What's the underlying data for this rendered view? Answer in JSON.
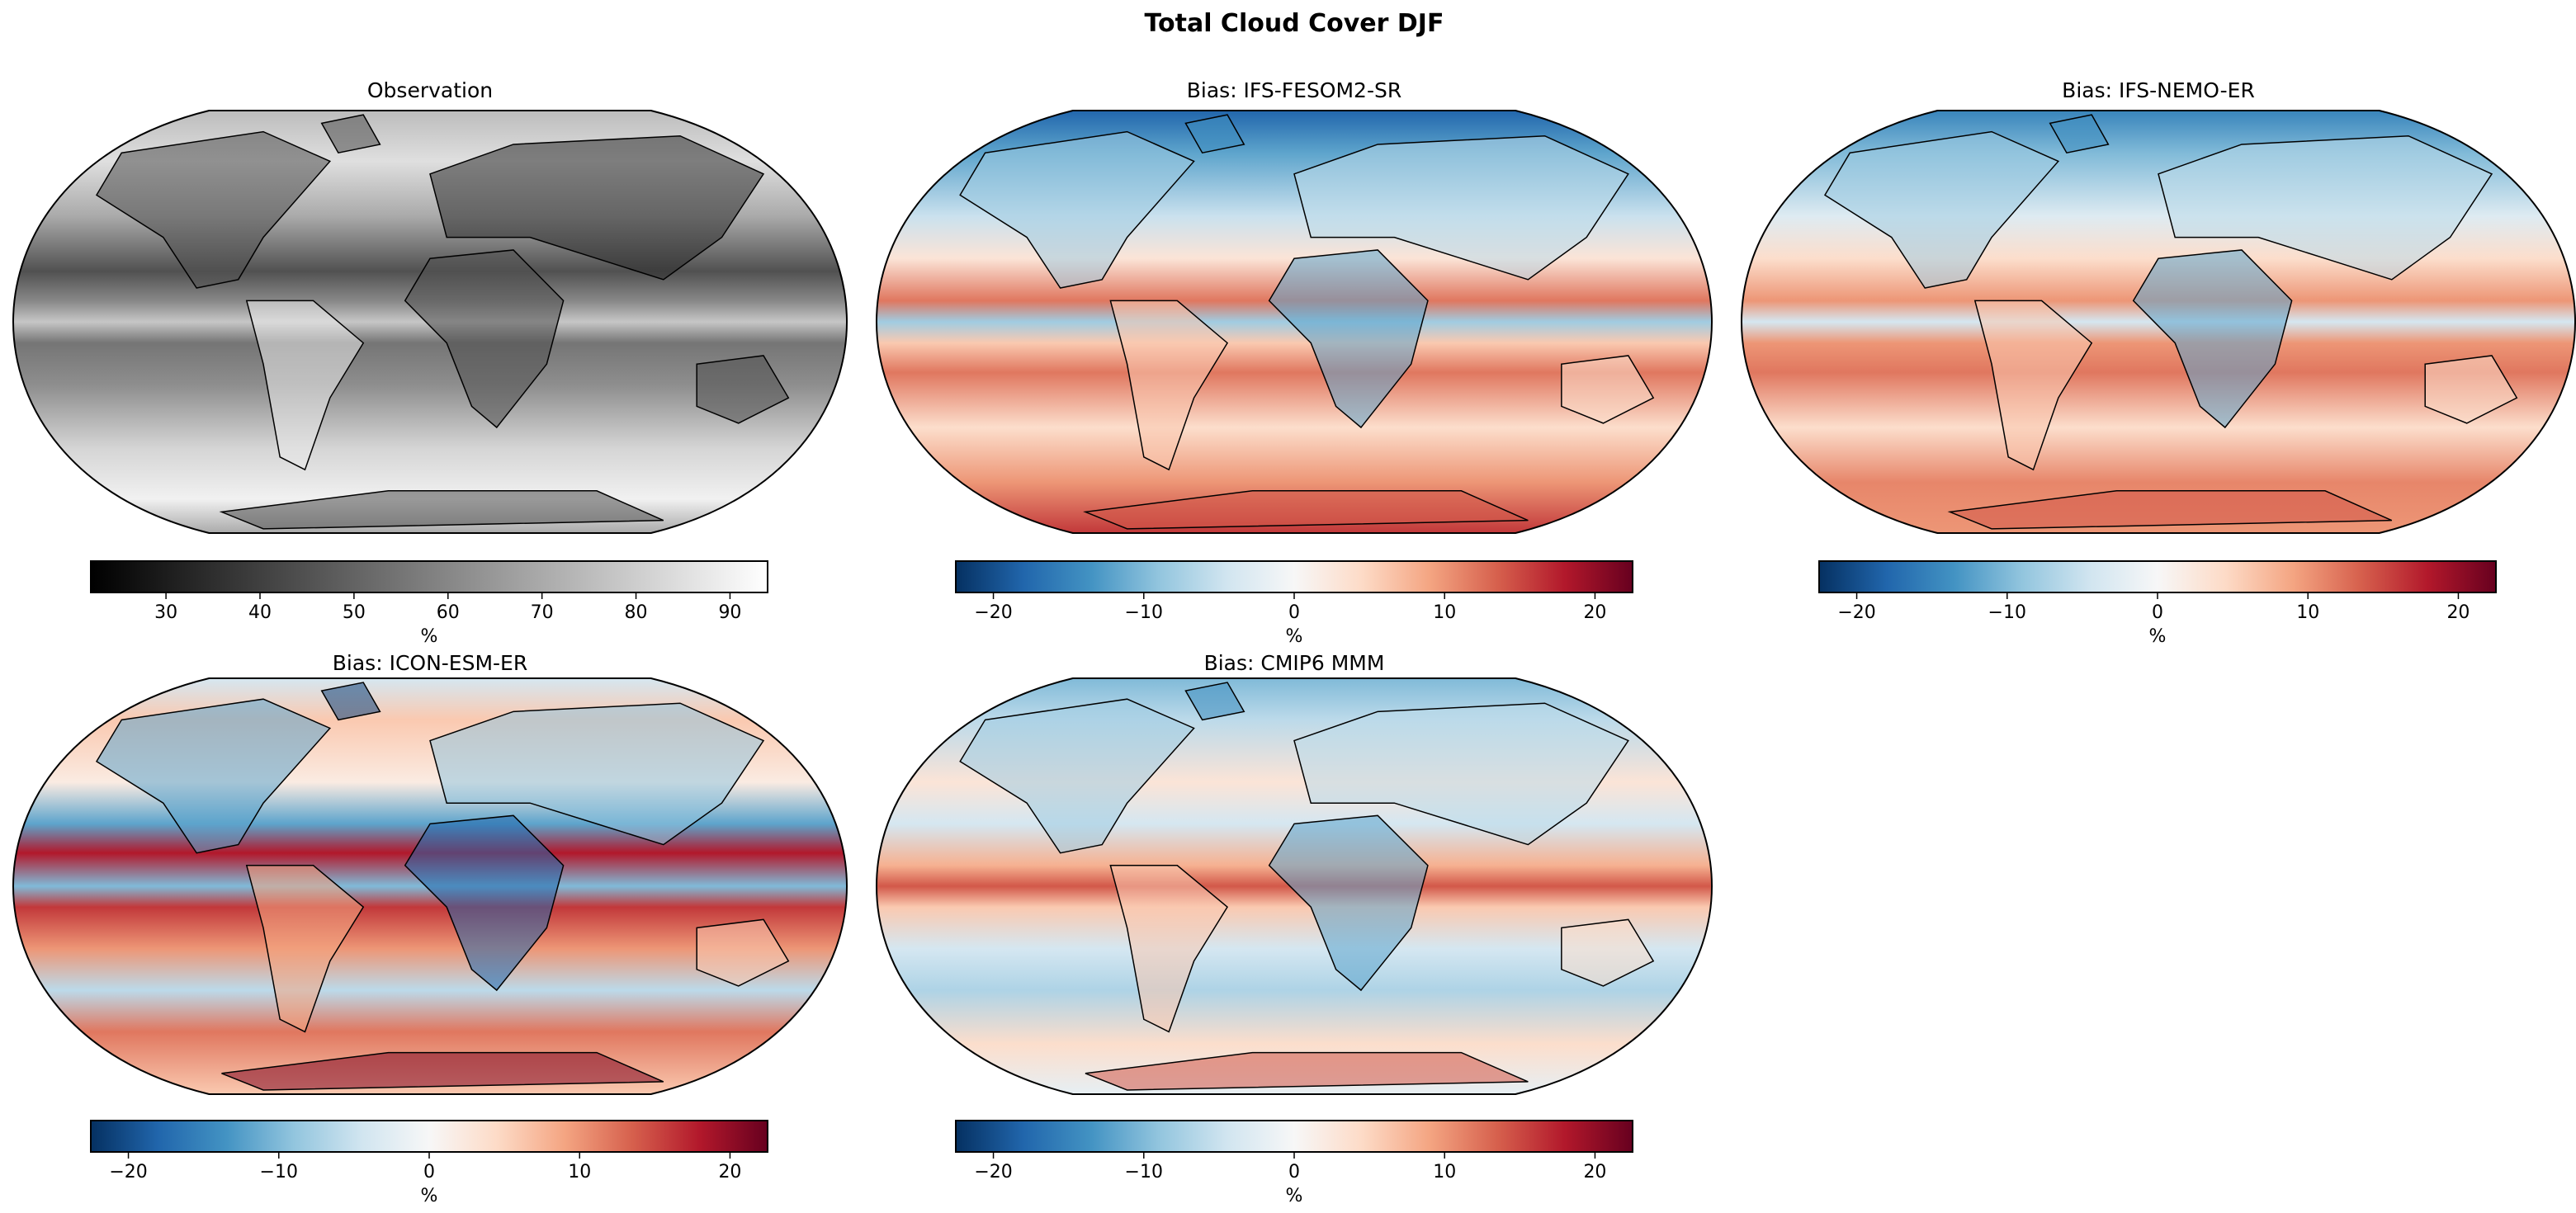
{
  "figure": {
    "title": "Total Cloud Cover DJF"
  },
  "chart_data": [
    {
      "type": "heatmap",
      "title": "Observation",
      "projection": "Robinson",
      "colormap": "grey",
      "clabel": "%",
      "vmin": 22,
      "vmax": 94,
      "ticks": [
        30,
        40,
        50,
        60,
        70,
        80,
        90
      ],
      "tick_labels": [
        "30",
        "40",
        "50",
        "60",
        "70",
        "80",
        "90"
      ],
      "colors": {
        "low": "#000000",
        "high": "#ffffff"
      }
    },
    {
      "type": "heatmap",
      "title": "Bias: IFS-FESOM2-SR",
      "projection": "Robinson",
      "colormap": "RdBu_r",
      "clabel": "%",
      "vmin": -22.5,
      "vmax": 22.5,
      "ticks": [
        -20,
        -10,
        0,
        10,
        20
      ],
      "tick_labels": [
        "−20",
        "−10",
        "0",
        "10",
        "20"
      ],
      "colors": {
        "low": "#053061",
        "mid": "#f7f7f7",
        "high": "#67001f"
      }
    },
    {
      "type": "heatmap",
      "title": "Bias: IFS-NEMO-ER",
      "projection": "Robinson",
      "colormap": "RdBu_r",
      "clabel": "%",
      "vmin": -22.5,
      "vmax": 22.5,
      "ticks": [
        -20,
        -10,
        0,
        10,
        20
      ],
      "tick_labels": [
        "−20",
        "−10",
        "0",
        "10",
        "20"
      ],
      "colors": {
        "low": "#053061",
        "mid": "#f7f7f7",
        "high": "#67001f"
      }
    },
    {
      "type": "heatmap",
      "title": "Bias: ICON-ESM-ER",
      "projection": "Robinson",
      "colormap": "RdBu_r",
      "clabel": "%",
      "vmin": -22.5,
      "vmax": 22.5,
      "ticks": [
        -20,
        -10,
        0,
        10,
        20
      ],
      "tick_labels": [
        "−20",
        "−10",
        "0",
        "10",
        "20"
      ],
      "colors": {
        "low": "#053061",
        "mid": "#f7f7f7",
        "high": "#67001f"
      }
    },
    {
      "type": "heatmap",
      "title": "Bias: CMIP6 MMM",
      "projection": "Robinson",
      "colormap": "RdBu_r",
      "clabel": "%",
      "vmin": -22.5,
      "vmax": 22.5,
      "ticks": [
        -20,
        -10,
        0,
        10,
        20
      ],
      "tick_labels": [
        "−20",
        "−10",
        "0",
        "10",
        "20"
      ],
      "colors": {
        "low": "#053061",
        "mid": "#f7f7f7",
        "high": "#67001f"
      }
    }
  ]
}
